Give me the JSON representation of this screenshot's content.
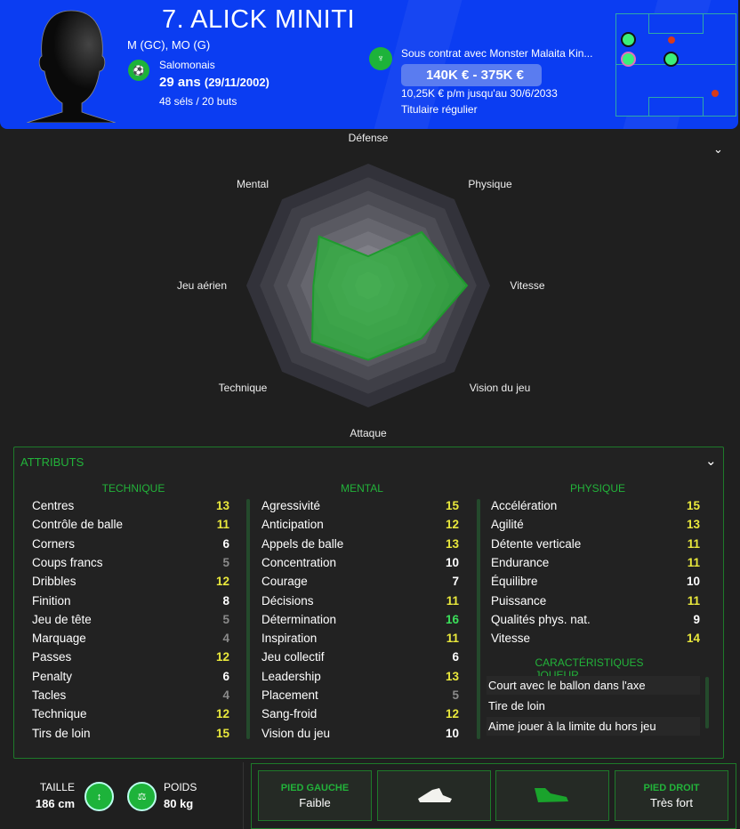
{
  "player": {
    "name": "7. ALICK MINITI",
    "positions": "M (GC), MO (G)",
    "nationality": "Salomonais",
    "age": "29 ans",
    "birthdate": "(29/11/2002)",
    "caps": "48 séls / 20 buts"
  },
  "contract": {
    "club_text": "Sous contrat avec Monster Malaita Kin...",
    "value": "140K € - 375K €",
    "wage": "10,25K € p/m jusqu'au 30/6/2033",
    "status": "Titulaire régulier"
  },
  "radar": {
    "scale_max": 20,
    "axes": [
      {
        "label": "Défense",
        "value": 4.8
      },
      {
        "label": "Physique",
        "value": 12.4
      },
      {
        "label": "Vitesse",
        "value": 16.2
      },
      {
        "label": "Vision du jeu",
        "value": 12.3
      },
      {
        "label": "Attaque",
        "value": 12.2
      },
      {
        "label": "Technique",
        "value": 13
      },
      {
        "label": "Jeu aérien",
        "value": 9
      },
      {
        "label": "Mental",
        "value": 11.4
      }
    ],
    "fill_color": "#2fb03f"
  },
  "attributes": {
    "title": "ATTRIBUTS",
    "technique": {
      "title": "TECHNIQUE",
      "items": [
        [
          "Centres",
          13
        ],
        [
          "Contrôle de balle",
          11
        ],
        [
          "Corners",
          6
        ],
        [
          "Coups francs",
          5
        ],
        [
          "Dribbles",
          12
        ],
        [
          "Finition",
          8
        ],
        [
          "Jeu de tête",
          5
        ],
        [
          "Marquage",
          4
        ],
        [
          "Passes",
          12
        ],
        [
          "Penalty",
          6
        ],
        [
          "Tacles",
          4
        ],
        [
          "Technique",
          12
        ],
        [
          "Tirs de loin",
          15
        ]
      ]
    },
    "mental": {
      "title": "MENTAL",
      "items": [
        [
          "Agressivité",
          15
        ],
        [
          "Anticipation",
          12
        ],
        [
          "Appels de balle",
          13
        ],
        [
          "Concentration",
          10
        ],
        [
          "Courage",
          7
        ],
        [
          "Décisions",
          11
        ],
        [
          "Détermination",
          16
        ],
        [
          "Inspiration",
          11
        ],
        [
          "Jeu collectif",
          6
        ],
        [
          "Leadership",
          13
        ],
        [
          "Placement",
          5
        ],
        [
          "Sang-froid",
          12
        ],
        [
          "Vision du jeu",
          10
        ]
      ]
    },
    "physique": {
      "title": "PHYSIQUE",
      "items": [
        [
          "Accélération",
          15
        ],
        [
          "Agilité",
          13
        ],
        [
          "Détente verticale",
          11
        ],
        [
          "Endurance",
          11
        ],
        [
          "Équilibre",
          10
        ],
        [
          "Puissance",
          11
        ],
        [
          "Qualités phys. nat.",
          9
        ],
        [
          "Vitesse",
          14
        ]
      ]
    },
    "traits": {
      "title": "CARACTÉRISTIQUES JOUEUR",
      "items": [
        "Court avec le ballon dans l'axe",
        "Tire de loin",
        "Aime jouer à la limite du hors jeu"
      ]
    }
  },
  "colors": {
    "high": "#e9e83c",
    "mid": "#ffffff",
    "low": "#8a8a8a",
    "top": "#3be05a",
    "accent": "#22b33a",
    "header": "#0b3df2"
  },
  "physical": {
    "height_label": "TAILLE",
    "height": "186 cm",
    "weight_label": "POIDS",
    "weight": "80 kg"
  },
  "feet": {
    "left_label": "PIED GAUCHE",
    "left_value": "Faible",
    "right_label": "PIED DROIT",
    "right_value": "Très fort"
  }
}
